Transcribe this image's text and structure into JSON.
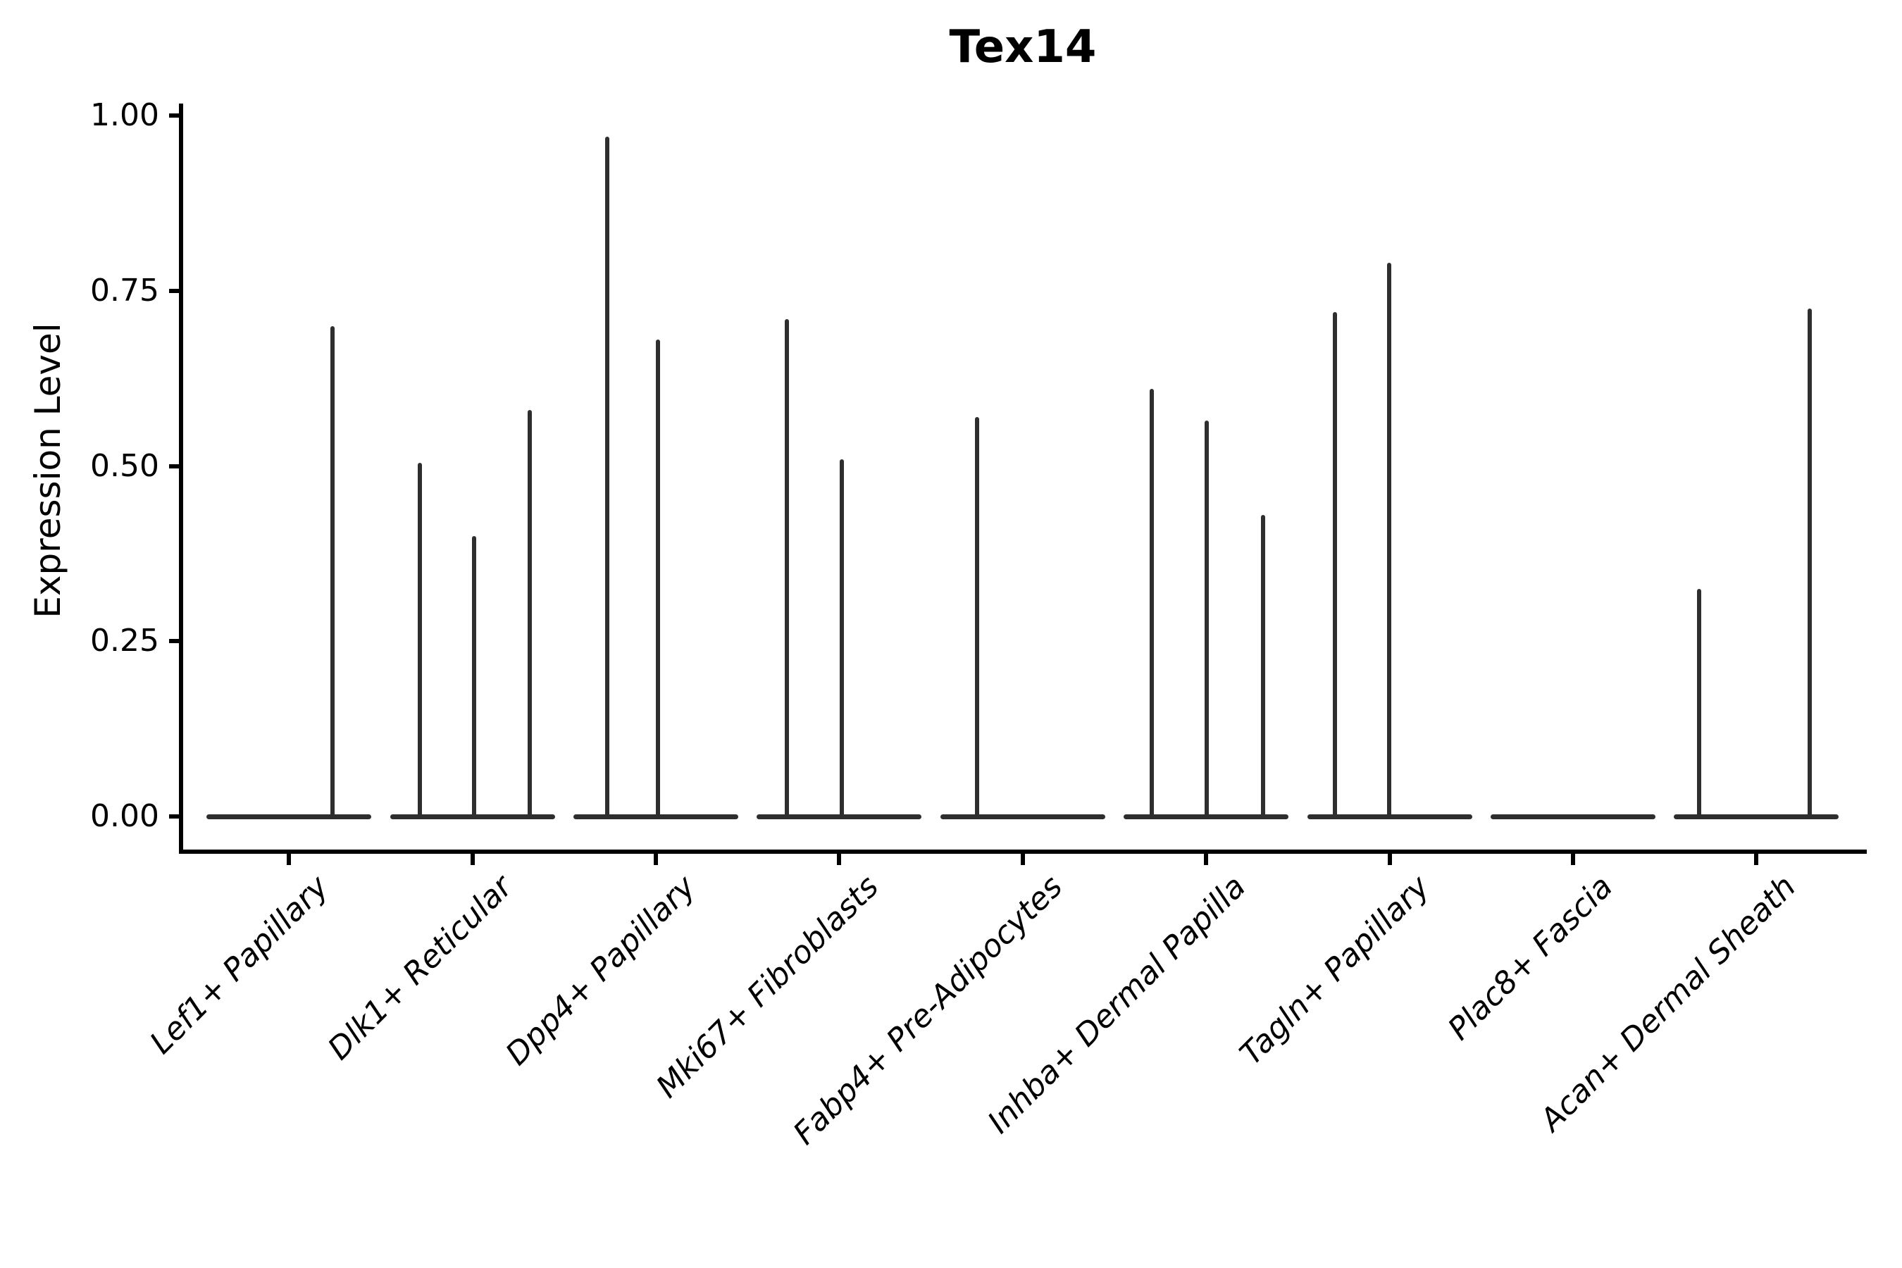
{
  "figure": {
    "background": "#ffffff",
    "text_color": "#000000"
  },
  "chart_data": {
    "type": "violin",
    "title": "Tex14",
    "xlabel": "",
    "ylabel": "Expression Level",
    "ylim": [
      0,
      1
    ],
    "ytick_values": [
      1.0,
      0.75,
      0.5,
      0.25,
      0.0
    ],
    "ytick_labels": [
      "1.00",
      "0.75",
      "0.50",
      "0.25",
      "0.00"
    ],
    "grid": false,
    "legend": false,
    "axis_color": "#000000",
    "violin_color": "#2e2e2e",
    "categories": [
      "Lef1+ Papillary",
      "Dlk1+ Reticular",
      "Dpp4+ Papillary",
      "Mki67+ Fibroblasts",
      "Fabp4+ Pre-Adipocytes",
      "Inhba+ Dermal Papilla",
      "Tagln+ Papillary",
      "Plac8+ Fascia",
      "Acan+ Dermal Sheath"
    ],
    "violins": [
      {
        "category": "Lef1+ Papillary",
        "baseline_value": 0,
        "spikes": [
          {
            "dx": 62,
            "value": 0.7
          }
        ]
      },
      {
        "category": "Dlk1+ Reticular",
        "baseline_value": 0,
        "spikes": [
          {
            "dx": -75,
            "value": 0.505
          },
          {
            "dx": 2,
            "value": 0.4
          },
          {
            "dx": 81,
            "value": 0.58
          }
        ]
      },
      {
        "category": "Dpp4+ Papillary",
        "baseline_value": 0,
        "spikes": [
          {
            "dx": -69,
            "value": 0.97
          },
          {
            "dx": 3,
            "value": 0.68
          }
        ]
      },
      {
        "category": "Mki67+ Fibroblasts",
        "baseline_value": 0,
        "spikes": [
          {
            "dx": -74,
            "value": 0.71
          },
          {
            "dx": 4,
            "value": 0.51
          }
        ]
      },
      {
        "category": "Fabp4+ Pre-Adipocytes",
        "baseline_value": 0,
        "spikes": [
          {
            "dx": -65,
            "value": 0.57
          }
        ]
      },
      {
        "category": "Inhba+ Dermal Papilla",
        "baseline_value": 0,
        "spikes": [
          {
            "dx": -77,
            "value": 0.61
          },
          {
            "dx": 1,
            "value": 0.565
          },
          {
            "dx": 81,
            "value": 0.43
          }
        ]
      },
      {
        "category": "Tagln+ Papillary",
        "baseline_value": 0,
        "spikes": [
          {
            "dx": -78,
            "value": 0.72
          },
          {
            "dx": -1,
            "value": 0.79
          }
        ]
      },
      {
        "category": "Plac8+ Fascia",
        "baseline_value": 0,
        "spikes": []
      },
      {
        "category": "Acan+ Dermal Sheath",
        "baseline_value": 0,
        "spikes": [
          {
            "dx": -81,
            "value": 0.325
          },
          {
            "dx": 76,
            "value": 0.725
          }
        ]
      }
    ]
  }
}
